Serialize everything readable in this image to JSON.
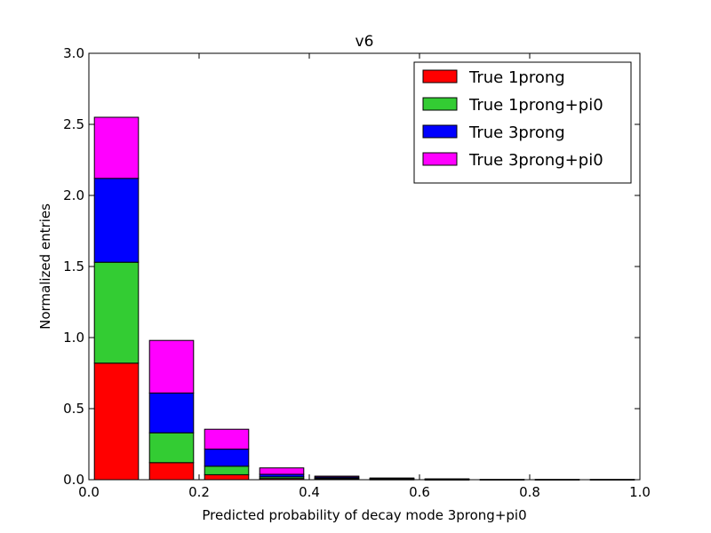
{
  "chart_data": {
    "type": "bar",
    "stacked": true,
    "title": "v6",
    "xlabel": "Predicted probability of decay mode 3prong+pi0",
    "ylabel": "Normalized entries",
    "xlim": [
      0.0,
      1.0
    ],
    "ylim": [
      0.0,
      3.0
    ],
    "xticks": [
      "0.0",
      "0.2",
      "0.4",
      "0.6",
      "0.8",
      "1.0"
    ],
    "yticks": [
      "0.0",
      "0.5",
      "1.0",
      "1.5",
      "2.0",
      "2.5",
      "3.0"
    ],
    "bin_edges": [
      0.0,
      0.1,
      0.2,
      0.3,
      0.4,
      0.5,
      0.6,
      0.7,
      0.8,
      0.9,
      1.0
    ],
    "bar_width_fraction": 0.8,
    "legend_position": "top-right",
    "grid": false,
    "series": [
      {
        "name": "True 1prong",
        "color": "#ff0000",
        "values": [
          0.82,
          0.12,
          0.035,
          0.008,
          0.004,
          0.002,
          0.001,
          0.0,
          0.0,
          0.0
        ]
      },
      {
        "name": "True 1prong+pi0",
        "color": "#33cc33",
        "values": [
          0.71,
          0.21,
          0.06,
          0.012,
          0.006,
          0.003,
          0.001,
          0.0,
          0.0,
          0.0
        ]
      },
      {
        "name": "True 3prong",
        "color": "#0000ff",
        "values": [
          0.59,
          0.28,
          0.12,
          0.018,
          0.008,
          0.004,
          0.002,
          0.001,
          0.001,
          0.001
        ]
      },
      {
        "name": "True 3prong+pi0",
        "color": "#ff00ff",
        "values": [
          0.43,
          0.37,
          0.14,
          0.045,
          0.007,
          0.003,
          0.002,
          0.001,
          0.001,
          0.001
        ]
      }
    ]
  }
}
